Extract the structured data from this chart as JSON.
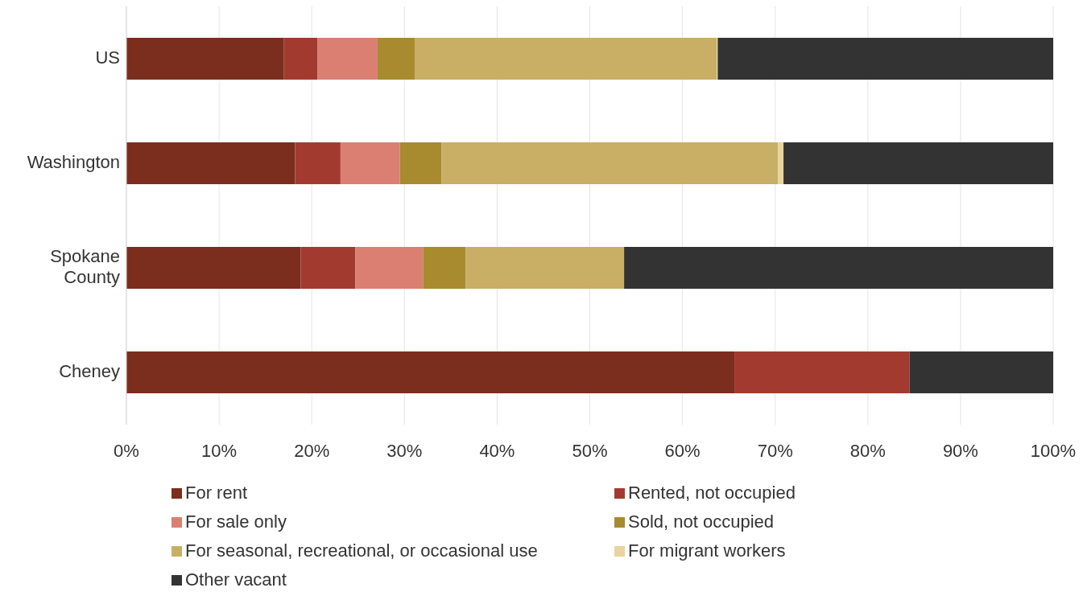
{
  "chart_data": {
    "type": "bar",
    "orientation": "horizontal",
    "stacked": true,
    "categories": [
      "US",
      "Washington",
      "Spokane\nCounty",
      "Cheney"
    ],
    "series": [
      {
        "name": "For rent",
        "color": "#7b2d1e",
        "values": [
          17.0,
          18.2,
          18.8,
          65.6
        ]
      },
      {
        "name": "Rented, not occupied",
        "color": "#a33a2f",
        "values": [
          3.6,
          4.9,
          5.9,
          18.9
        ]
      },
      {
        "name": "For sale only",
        "color": "#db7f73",
        "values": [
          6.5,
          6.4,
          7.3,
          0
        ]
      },
      {
        "name": "Sold, not occupied",
        "color": "#a88a2f",
        "values": [
          4.0,
          4.5,
          4.6,
          0
        ]
      },
      {
        "name": "For seasonal, recreational, or occasional use",
        "color": "#c9ae65",
        "values": [
          32.6,
          36.3,
          17.1,
          0
        ]
      },
      {
        "name": "For migrant workers",
        "color": "#e8d49c",
        "values": [
          0.1,
          0.6,
          0,
          0
        ]
      },
      {
        "name": "Other vacant",
        "color": "#333333",
        "values": [
          36.2,
          29.1,
          46.3,
          15.5
        ]
      }
    ],
    "xlim": [
      0,
      100
    ],
    "xticks": [
      {
        "value": 0,
        "label": "0%"
      },
      {
        "value": 10,
        "label": "10%"
      },
      {
        "value": 20,
        "label": "20%"
      },
      {
        "value": 30,
        "label": "30%"
      },
      {
        "value": 40,
        "label": "40%"
      },
      {
        "value": 50,
        "label": "50%"
      },
      {
        "value": 60,
        "label": "60%"
      },
      {
        "value": 70,
        "label": "70%"
      },
      {
        "value": 80,
        "label": "80%"
      },
      {
        "value": 90,
        "label": "90%"
      },
      {
        "value": 100,
        "label": "100%"
      }
    ],
    "grid": "x",
    "legend": "bottom"
  }
}
